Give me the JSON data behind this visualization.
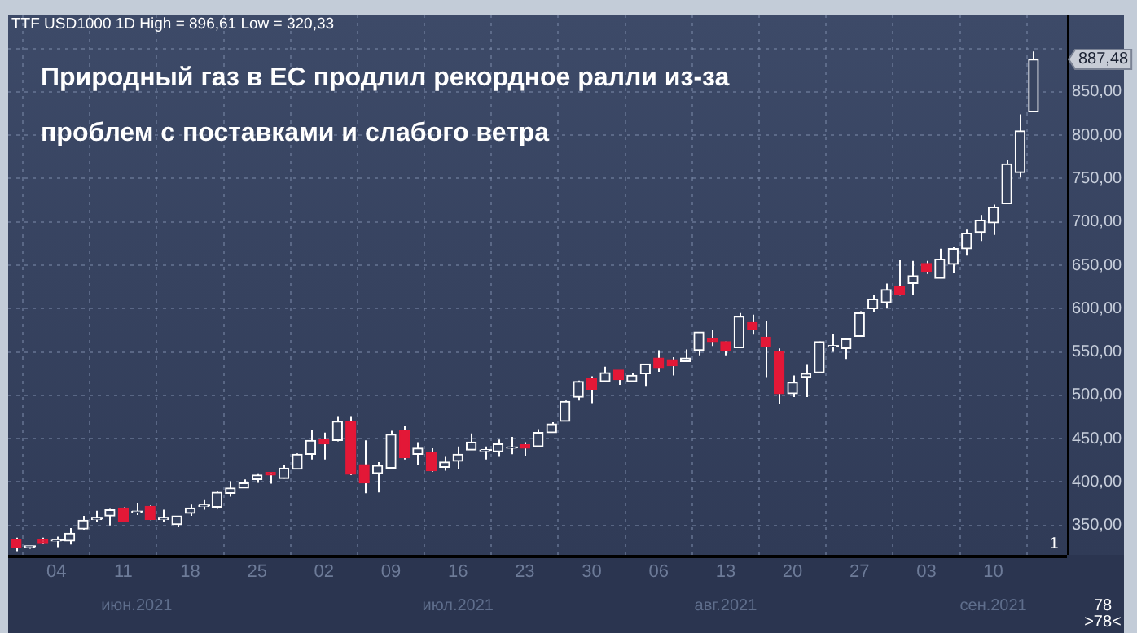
{
  "chart_data": {
    "type": "candlestick",
    "title": "Природный газ в ЕС продлил рекордное ралли из-за проблем с поставками и слабого ветра",
    "subtitle": "TTF USD1000 1D High = 896,61 Low = 320,33",
    "categories": [
      null,
      null,
      null,
      "04",
      null,
      null,
      null,
      null,
      "11",
      null,
      null,
      null,
      null,
      "18",
      null,
      null,
      null,
      null,
      "25",
      null,
      null,
      null,
      null,
      "02",
      null,
      null,
      null,
      null,
      "09",
      null,
      null,
      null,
      null,
      "16",
      null,
      null,
      null,
      null,
      "23",
      null,
      null,
      null,
      null,
      "30",
      null,
      null,
      null,
      null,
      "06",
      null,
      null,
      null,
      null,
      "13",
      null,
      null,
      null,
      null,
      "20",
      null,
      null,
      null,
      null,
      "27",
      null,
      null,
      null,
      null,
      "03",
      null,
      null,
      null,
      null,
      "10",
      null,
      null,
      null
    ],
    "ohlc": [
      [
        334,
        336,
        320.33,
        325
      ],
      [
        325,
        326,
        323,
        326
      ],
      [
        334,
        336,
        329,
        330
      ],
      [
        332,
        337,
        325,
        333
      ],
      [
        332,
        347,
        328,
        341
      ],
      [
        346,
        361,
        345,
        356
      ],
      [
        357,
        367,
        354,
        358
      ],
      [
        361,
        370,
        350,
        368
      ],
      [
        370,
        371,
        354,
        355
      ],
      [
        365,
        376,
        362,
        366
      ],
      [
        372,
        373,
        356,
        357
      ],
      [
        357,
        368,
        354,
        358
      ],
      [
        351,
        361,
        348,
        361
      ],
      [
        364,
        374,
        361,
        370
      ],
      [
        372,
        380,
        368,
        373
      ],
      [
        371,
        389,
        370,
        388
      ],
      [
        387,
        401,
        383,
        393
      ],
      [
        393,
        403,
        393,
        399
      ],
      [
        403,
        410,
        399,
        408
      ],
      [
        411,
        411,
        398,
        408
      ],
      [
        404,
        420,
        404,
        416
      ],
      [
        415,
        433,
        415,
        432
      ],
      [
        432,
        460,
        426,
        448
      ],
      [
        449,
        457,
        426,
        444
      ],
      [
        448,
        476,
        447,
        470
      ],
      [
        470,
        476,
        408,
        409
      ],
      [
        420,
        448,
        387,
        399
      ],
      [
        410,
        423,
        388,
        419
      ],
      [
        416,
        459,
        416,
        455
      ],
      [
        459,
        465,
        426,
        428
      ],
      [
        432,
        446,
        420,
        439
      ],
      [
        434,
        439,
        412,
        413
      ],
      [
        417,
        429,
        413,
        423
      ],
      [
        424,
        441,
        415,
        432
      ],
      [
        437,
        456,
        437,
        446
      ],
      [
        436,
        441,
        426,
        437
      ],
      [
        435,
        449,
        429,
        444
      ],
      [
        439,
        452,
        432,
        440
      ],
      [
        443,
        446,
        430,
        439
      ],
      [
        441,
        461,
        441,
        457
      ],
      [
        457,
        469,
        457,
        467
      ],
      [
        470,
        494,
        470,
        493
      ],
      [
        498,
        517,
        494,
        516
      ],
      [
        520,
        522,
        491,
        507
      ],
      [
        516,
        533,
        516,
        526
      ],
      [
        529,
        529,
        512,
        518
      ],
      [
        516,
        526,
        516,
        523
      ],
      [
        525,
        536,
        510,
        536
      ],
      [
        543,
        552,
        527,
        532
      ],
      [
        541,
        544,
        523,
        534
      ],
      [
        539,
        553,
        539,
        543
      ],
      [
        552,
        573,
        546,
        573
      ],
      [
        566,
        575,
        557,
        562
      ],
      [
        562,
        562,
        546,
        552
      ],
      [
        555,
        595,
        555,
        591
      ],
      [
        584,
        593,
        570,
        576
      ],
      [
        567,
        586,
        521,
        556
      ],
      [
        551,
        554,
        490,
        502
      ],
      [
        502,
        523,
        498,
        515
      ],
      [
        521,
        536,
        498,
        525
      ],
      [
        526,
        562,
        526,
        562
      ],
      [
        556,
        571,
        550,
        557
      ],
      [
        554,
        565,
        542,
        565
      ],
      [
        568,
        597,
        568,
        595
      ],
      [
        600,
        616,
        596,
        611
      ],
      [
        607,
        629,
        600,
        622
      ],
      [
        626,
        656,
        615,
        616
      ],
      [
        629,
        655,
        616,
        638
      ],
      [
        652,
        655,
        640,
        643
      ],
      [
        635,
        669,
        635,
        657
      ],
      [
        651,
        671,
        641,
        669
      ],
      [
        669,
        691,
        661,
        687
      ],
      [
        688,
        708,
        678,
        702
      ],
      [
        699,
        720,
        685,
        717
      ],
      [
        721,
        771,
        721,
        767
      ],
      [
        757,
        824,
        751,
        805
      ],
      [
        827,
        896.61,
        827,
        887.48
      ]
    ],
    "color": "#ffffff",
    "colors": [
      "#e31837",
      "#ffffff",
      "#e31837",
      "#ffffff",
      "#ffffff",
      "#ffffff",
      "#ffffff",
      "#ffffff",
      "#e31837",
      "#ffffff",
      "#e31837",
      "#ffffff",
      "#ffffff",
      "#ffffff",
      "#ffffff",
      "#ffffff",
      "#ffffff",
      "#ffffff",
      "#ffffff",
      "#e31837",
      "#ffffff",
      "#ffffff",
      "#ffffff",
      "#e31837",
      "#ffffff",
      "#e31837",
      "#e31837",
      "#ffffff",
      "#ffffff",
      "#e31837",
      "#ffffff",
      "#e31837",
      "#ffffff",
      "#ffffff",
      "#ffffff",
      "#ffffff",
      "#ffffff",
      "#ffffff",
      "#e31837",
      "#ffffff",
      "#ffffff",
      "#ffffff",
      "#ffffff",
      "#e31837",
      "#ffffff",
      "#e31837",
      "#ffffff",
      "#ffffff",
      "#e31837",
      "#e31837",
      "#ffffff",
      "#ffffff",
      "#e31837",
      "#e31837",
      "#ffffff",
      "#e31837",
      "#e31837",
      "#e31837",
      "#ffffff",
      "#ffffff",
      "#ffffff",
      "#ffffff",
      "#ffffff",
      "#ffffff",
      "#ffffff",
      "#ffffff",
      "#e31837",
      "#ffffff",
      "#e31837",
      "#ffffff",
      "#ffffff",
      "#ffffff",
      "#ffffff",
      "#ffffff",
      "#ffffff",
      "#ffffff",
      "#ffffff"
    ],
    "ylim": [
      316,
      939
    ],
    "yticks": [
      {
        "value": 350,
        "label": "350,00"
      },
      {
        "value": 400,
        "label": "400,00"
      },
      {
        "value": 450,
        "label": "450,00"
      },
      {
        "value": 500,
        "label": "500,00"
      },
      {
        "value": 550,
        "label": "550,00"
      },
      {
        "value": 600,
        "label": "600,00"
      },
      {
        "value": 650,
        "label": "650,00"
      },
      {
        "value": 700,
        "label": "700,00"
      },
      {
        "value": 750,
        "label": "750,00"
      },
      {
        "value": 800,
        "label": "800,00"
      },
      {
        "value": 850,
        "label": "850,00"
      },
      {
        "value": 900,
        "label": null
      }
    ],
    "annotations": [
      "июн.2021",
      "июл.2021",
      "авг.2021",
      "сен.2021",
      "887,48",
      "1",
      "78",
      ">78<"
    ],
    "grid": true,
    "legend": false
  }
}
